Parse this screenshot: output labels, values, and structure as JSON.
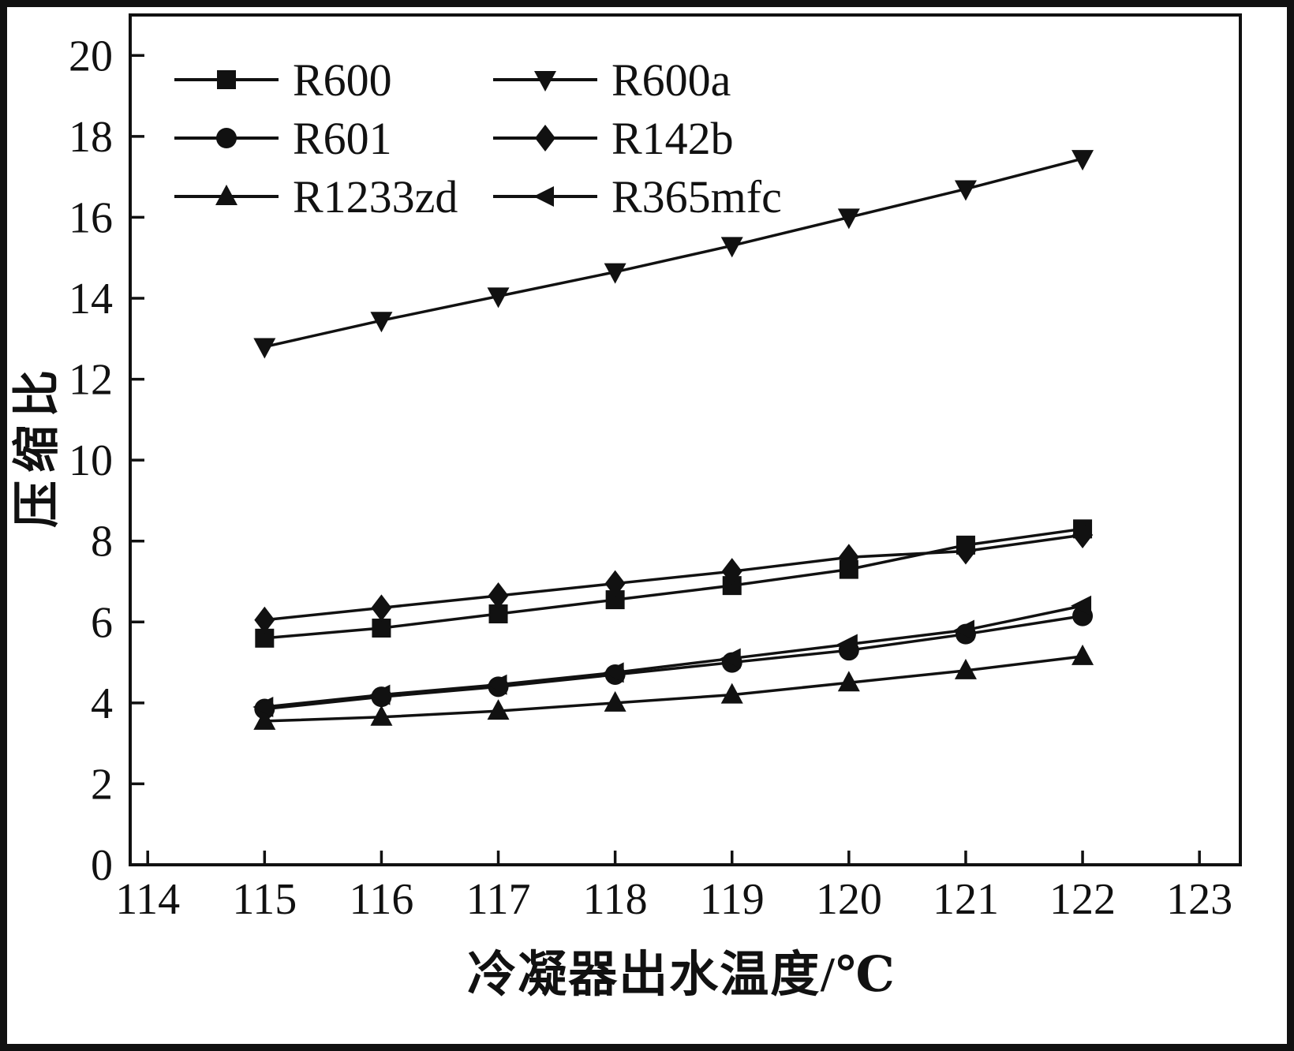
{
  "chart_data": {
    "type": "line",
    "title": "",
    "xlabel": "冷凝器出水温度/℃",
    "ylabel": "压缩比",
    "x": [
      115,
      116,
      117,
      118,
      119,
      120,
      121,
      122
    ],
    "series": [
      {
        "name": "R600",
        "marker": "square",
        "values": [
          5.6,
          5.85,
          6.2,
          6.55,
          6.9,
          7.3,
          7.9,
          8.3
        ]
      },
      {
        "name": "R600a",
        "marker": "triangle-down",
        "values": [
          12.8,
          13.45,
          14.05,
          14.65,
          15.3,
          16.0,
          16.7,
          17.45
        ]
      },
      {
        "name": "R601",
        "marker": "circle",
        "values": [
          3.85,
          4.15,
          4.4,
          4.7,
          5.0,
          5.3,
          5.7,
          6.15
        ]
      },
      {
        "name": "R142b",
        "marker": "diamond",
        "values": [
          6.05,
          6.35,
          6.65,
          6.95,
          7.25,
          7.6,
          7.75,
          8.15
        ]
      },
      {
        "name": "R1233zd",
        "marker": "triangle-up",
        "values": [
          3.55,
          3.65,
          3.8,
          4.0,
          4.2,
          4.5,
          4.8,
          5.15
        ]
      },
      {
        "name": "R365mfc",
        "marker": "triangle-left",
        "values": [
          3.9,
          4.2,
          4.45,
          4.75,
          5.1,
          5.45,
          5.8,
          6.4
        ]
      }
    ],
    "xlim": [
      114,
      123
    ],
    "ylim": [
      0,
      20
    ],
    "xticks": [
      114,
      115,
      116,
      117,
      118,
      119,
      120,
      121,
      122,
      123
    ],
    "yticks": [
      0,
      2,
      4,
      6,
      8,
      10,
      12,
      14,
      16,
      18,
      20
    ],
    "grid": false,
    "legend_position": "top-left",
    "legend_columns": [
      [
        "R600",
        "R601",
        "R1233zd"
      ],
      [
        "R600a",
        "R142b",
        "R365mfc"
      ]
    ],
    "line_color": "#111111",
    "background_color": "#ffffff"
  }
}
